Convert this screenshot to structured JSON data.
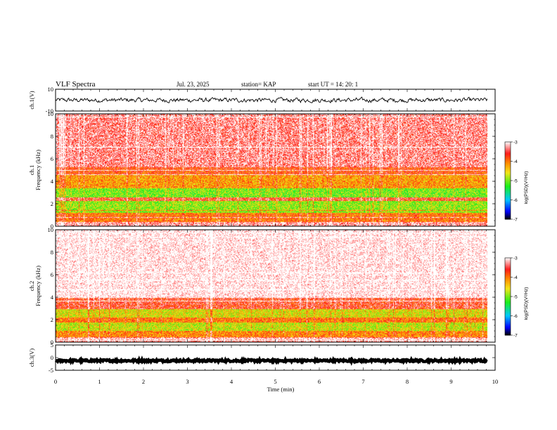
{
  "header": {
    "title": "VLF Spectra",
    "date": "Jul. 23, 2025",
    "station": "station= KAP",
    "start": "start UT =  14: 20: 1"
  },
  "colors": {
    "white": "#ffffff",
    "red": "#ff1a1a",
    "orange": "#ff8c00",
    "yellow": "#f2e61a",
    "green": "#1aee1a",
    "cyan": "#00ccff",
    "blue": "#0000ff",
    "black": "#000000"
  },
  "chart_data": [
    {
      "type": "line",
      "name": "ch1-waveform",
      "ylabel": "ch.1(V)",
      "ylim": [
        -10,
        10
      ],
      "yticks": [
        "10",
        "-10"
      ],
      "xlim": [
        0,
        10
      ],
      "data_extent_min": 9.82,
      "description_level": 0,
      "noise_amplitude": 3.5
    },
    {
      "type": "heatmap",
      "name": "ch1-spectrogram",
      "ylabel": "ch.1\nFrequency (kHz)",
      "ylabel_lines": [
        "ch.1",
        "Frequency (kHz)"
      ],
      "ylim": [
        0,
        10
      ],
      "yticks": [
        "0",
        "2",
        "4",
        "6",
        "8",
        "10"
      ],
      "xlim": [
        0,
        10
      ],
      "data_extent_min": 9.82,
      "colorbar": {
        "label": "log(PSD)(V²/Hz)",
        "range": [
          -7,
          -3
        ],
        "ticks": [
          "-3",
          "-4",
          "-5",
          "-6",
          "-7"
        ]
      },
      "bands": [
        {
          "freq_khz": [
            0,
            0.4
          ],
          "level": -3.2
        },
        {
          "freq_khz": [
            0.4,
            1.2
          ],
          "level": -4.0
        },
        {
          "freq_khz": [
            1.2,
            2.3
          ],
          "level": -4.9
        },
        {
          "freq_khz": [
            2.3,
            2.6
          ],
          "level": -3.6
        },
        {
          "freq_khz": [
            2.6,
            3.4
          ],
          "level": -5.0
        },
        {
          "freq_khz": [
            3.4,
            4.6
          ],
          "level": -4.2
        },
        {
          "freq_khz": [
            4.6,
            5.3
          ],
          "level": -3.8
        },
        {
          "freq_khz": [
            5.3,
            10
          ],
          "level": -3.3
        }
      ]
    },
    {
      "type": "heatmap",
      "name": "ch2-spectrogram",
      "ylabel": "ch.2\nFrequency (kHz)",
      "ylabel_lines": [
        "ch.2",
        "Frequency (kHz)"
      ],
      "ylim": [
        0,
        10
      ],
      "yticks": [
        "0",
        "2",
        "4",
        "6",
        "8",
        "10"
      ],
      "xlim": [
        0,
        10
      ],
      "data_extent_min": 9.82,
      "colorbar": {
        "label": "log(PSD)(V²/Hz)",
        "range": [
          -7,
          -3
        ],
        "ticks": [
          "-3",
          "-4",
          "-5",
          "-6",
          "-7"
        ]
      },
      "bands": [
        {
          "freq_khz": [
            0,
            0.5
          ],
          "level": -3.3
        },
        {
          "freq_khz": [
            0.5,
            1.0
          ],
          "level": -4.1
        },
        {
          "freq_khz": [
            1.0,
            1.8
          ],
          "level": -4.7
        },
        {
          "freq_khz": [
            1.8,
            2.2
          ],
          "level": -4.0
        },
        {
          "freq_khz": [
            2.2,
            3.0
          ],
          "level": -4.6
        },
        {
          "freq_khz": [
            3.0,
            4.0
          ],
          "level": -3.6
        },
        {
          "freq_khz": [
            4.0,
            10
          ],
          "level": -2.9
        }
      ]
    },
    {
      "type": "line",
      "name": "ch3-waveform",
      "ylabel": "ch.3(V)",
      "ylim": [
        -5,
        5
      ],
      "yticks": [
        "5",
        "0",
        "-5"
      ],
      "xlim": [
        0,
        10
      ],
      "data_extent_min": 9.82,
      "description_level": -1.2,
      "noise_amplitude": 0.4
    }
  ],
  "x_axis": {
    "label": "Time (min)",
    "ticks": [
      "0",
      "1",
      "2",
      "3",
      "4",
      "5",
      "6",
      "7",
      "8",
      "9",
      "10"
    ]
  }
}
